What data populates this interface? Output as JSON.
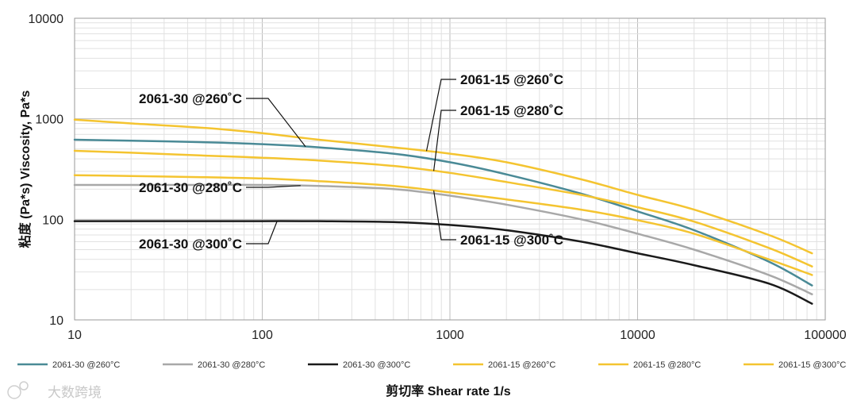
{
  "chart_data": {
    "type": "line",
    "title": "",
    "xlabel": "剪切率 Shear rate 1/s",
    "ylabel": "粘度 (Pa*s) Viscosity, Pa*s",
    "xscale": "log",
    "yscale": "log",
    "xlim": [
      10,
      100000
    ],
    "ylim": [
      10,
      10000
    ],
    "x_ticks": [
      10,
      100,
      1000,
      10000,
      100000
    ],
    "x_tick_labels": [
      "10",
      "100",
      "1000",
      "10000",
      "100000"
    ],
    "y_ticks": [
      10,
      100,
      1000,
      10000
    ],
    "y_tick_labels": [
      "10",
      "100",
      "1000",
      "10000"
    ],
    "grid": true,
    "legend_position": "bottom",
    "x": [
      10,
      20,
      50,
      100,
      200,
      500,
      1000,
      2000,
      5000,
      10000,
      20000,
      50000,
      85000
    ],
    "series": [
      {
        "name": "2061-30 @260°C",
        "color": "#4a8a96",
        "values": [
          620,
          605,
          585,
          560,
          520,
          450,
          370,
          280,
          180,
          120,
          78,
          38,
          22
        ]
      },
      {
        "name": "2061-30 @280°C",
        "color": "#a8a8a8",
        "values": [
          220,
          220,
          220,
          220,
          215,
          200,
          172,
          140,
          100,
          72,
          50,
          28,
          18
        ]
      },
      {
        "name": "2061-30 @300°C",
        "color": "#1a1a1a",
        "values": [
          96,
          96,
          96,
          96,
          96,
          94,
          88,
          78,
          60,
          46,
          35,
          23,
          14.5
        ]
      },
      {
        "name": "2061-15 @260°C",
        "color": "#f4c430",
        "values": [
          980,
          900,
          810,
          720,
          620,
          520,
          450,
          370,
          250,
          175,
          125,
          70,
          46
        ]
      },
      {
        "name": "2061-15 @280°C",
        "color": "#f4c430",
        "values": [
          480,
          460,
          430,
          410,
          385,
          340,
          290,
          235,
          175,
          132,
          95,
          52,
          34
        ]
      },
      {
        "name": "2061-15 @300°C",
        "color": "#f4c430",
        "values": [
          275,
          270,
          262,
          255,
          240,
          215,
          185,
          158,
          125,
          98,
          72,
          40,
          28
        ]
      }
    ],
    "annotations": [
      {
        "text": "2061-30 @260˚C",
        "series": 0,
        "x": 170
      },
      {
        "text": "2061-30 @280˚C",
        "series": 1,
        "x": 160
      },
      {
        "text": "2061-30 @300˚C",
        "series": 2,
        "x": 120
      },
      {
        "text": "2061-15 @260˚C",
        "series": 3,
        "x": 750
      },
      {
        "text": "2061-15 @280˚C",
        "series": 4,
        "x": 820
      },
      {
        "text": "2061-15 @300˚C",
        "series": 5,
        "x": 820
      }
    ]
  },
  "watermark": {
    "text": "大数跨境"
  }
}
